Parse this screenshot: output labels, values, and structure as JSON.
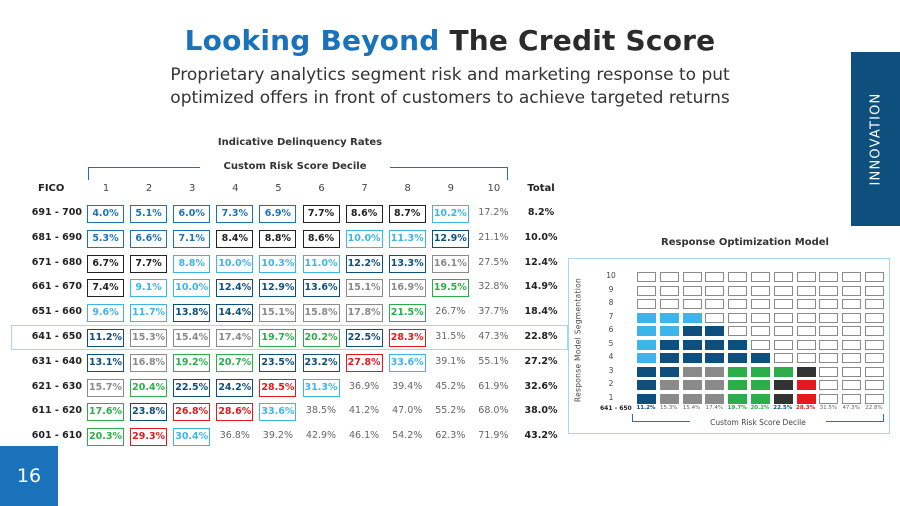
{
  "title": {
    "part1": "Looking Beyond",
    "part2": "The Credit Score"
  },
  "subtitle": {
    "line1": "Proprietary analytics segment risk and marketing response to put",
    "line2": "optimized offers in front of customers to achieve targeted returns"
  },
  "side_tab": "INNOVATION",
  "page_number": "16",
  "colors": {
    "blue": "#1A73BA",
    "dark_navy": "#0E4F7E",
    "black": "#222222",
    "light_blue": "#3DB5EA",
    "gray": "#8A8A8A",
    "green": "#2BAE49",
    "red": "#E3191D",
    "dark_gray": "#333333"
  },
  "table": {
    "title": "Indicative Delinquency Rates",
    "subtitle": "Custom Risk Score Decile",
    "fico_header": "FICO",
    "deciles": [
      "1",
      "2",
      "3",
      "4",
      "5",
      "6",
      "7",
      "8",
      "9",
      "10"
    ],
    "total_header": "Total",
    "rows": [
      {
        "label": "691 - 700",
        "total": "8.2%",
        "cells": [
          [
            "4.0%",
            "blue"
          ],
          [
            "5.1%",
            "blue"
          ],
          [
            "6.0%",
            "blue"
          ],
          [
            "7.3%",
            "blue"
          ],
          [
            "6.9%",
            "blue"
          ],
          [
            "7.7%",
            "black"
          ],
          [
            "8.6%",
            "black"
          ],
          [
            "8.7%",
            "black"
          ],
          [
            "10.2%",
            "lightblue"
          ],
          [
            "17.2%",
            "plain"
          ]
        ]
      },
      {
        "label": "681 - 690",
        "total": "10.0%",
        "cells": [
          [
            "5.3%",
            "blue"
          ],
          [
            "6.6%",
            "blue"
          ],
          [
            "7.1%",
            "blue"
          ],
          [
            "8.4%",
            "black"
          ],
          [
            "8.8%",
            "black"
          ],
          [
            "8.6%",
            "black"
          ],
          [
            "10.0%",
            "lightblue"
          ],
          [
            "11.3%",
            "lightblue"
          ],
          [
            "12.9%",
            "navy"
          ],
          [
            "21.1%",
            "plain"
          ]
        ]
      },
      {
        "label": "671 - 680",
        "total": "12.4%",
        "cells": [
          [
            "6.7%",
            "black"
          ],
          [
            "7.7%",
            "black"
          ],
          [
            "8.8%",
            "lightblue"
          ],
          [
            "10.0%",
            "lightblue"
          ],
          [
            "10.3%",
            "lightblue"
          ],
          [
            "11.0%",
            "lightblue"
          ],
          [
            "12.2%",
            "navy"
          ],
          [
            "13.3%",
            "navy"
          ],
          [
            "16.1%",
            "gray"
          ],
          [
            "27.5%",
            "plain"
          ]
        ]
      },
      {
        "label": "661 - 670",
        "total": "14.9%",
        "cells": [
          [
            "7.4%",
            "black"
          ],
          [
            "9.1%",
            "lightblue"
          ],
          [
            "10.0%",
            "lightblue"
          ],
          [
            "12.4%",
            "navy"
          ],
          [
            "12.9%",
            "navy"
          ],
          [
            "13.6%",
            "navy"
          ],
          [
            "15.1%",
            "gray"
          ],
          [
            "16.9%",
            "gray"
          ],
          [
            "19.5%",
            "green"
          ],
          [
            "32.8%",
            "plain"
          ]
        ]
      },
      {
        "label": "651 - 660",
        "total": "18.4%",
        "cells": [
          [
            "9.6%",
            "lightblue"
          ],
          [
            "11.7%",
            "lightblue"
          ],
          [
            "13.8%",
            "navy"
          ],
          [
            "14.4%",
            "navy"
          ],
          [
            "15.1%",
            "gray"
          ],
          [
            "15.8%",
            "gray"
          ],
          [
            "17.8%",
            "gray"
          ],
          [
            "21.5%",
            "green"
          ],
          [
            "26.7%",
            "plain"
          ],
          [
            "37.7%",
            "plain"
          ]
        ]
      },
      {
        "label": "641 - 650",
        "total": "22.8%",
        "cells": [
          [
            "11.2%",
            "navy"
          ],
          [
            "15.3%",
            "gray"
          ],
          [
            "15.4%",
            "gray"
          ],
          [
            "17.4%",
            "gray"
          ],
          [
            "19.7%",
            "green"
          ],
          [
            "20.2%",
            "green"
          ],
          [
            "22.5%",
            "navy"
          ],
          [
            "28.3%",
            "red"
          ],
          [
            "31.5%",
            "plain"
          ],
          [
            "47.3%",
            "plain"
          ]
        ]
      },
      {
        "label": "631 - 640",
        "total": "27.2%",
        "cells": [
          [
            "13.1%",
            "navy"
          ],
          [
            "16.8%",
            "gray"
          ],
          [
            "19.2%",
            "green"
          ],
          [
            "20.7%",
            "green"
          ],
          [
            "23.5%",
            "navy"
          ],
          [
            "23.2%",
            "navy"
          ],
          [
            "27.8%",
            "red"
          ],
          [
            "33.6%",
            "lightblue"
          ],
          [
            "39.1%",
            "plain"
          ],
          [
            "55.1%",
            "plain"
          ]
        ]
      },
      {
        "label": "621 - 630",
        "total": "32.6%",
        "cells": [
          [
            "15.7%",
            "gray"
          ],
          [
            "20.4%",
            "green"
          ],
          [
            "22.5%",
            "navy"
          ],
          [
            "24.2%",
            "navy"
          ],
          [
            "28.5%",
            "red"
          ],
          [
            "31.3%",
            "lightblue"
          ],
          [
            "36.9%",
            "plain"
          ],
          [
            "39.4%",
            "plain"
          ],
          [
            "45.2%",
            "plain"
          ],
          [
            "61.9%",
            "plain"
          ]
        ]
      },
      {
        "label": "611 - 620",
        "total": "38.0%",
        "cells": [
          [
            "17.6%",
            "green"
          ],
          [
            "23.8%",
            "navy"
          ],
          [
            "26.8%",
            "red"
          ],
          [
            "28.6%",
            "red"
          ],
          [
            "33.6%",
            "lightblue"
          ],
          [
            "38.5%",
            "plain"
          ],
          [
            "41.2%",
            "plain"
          ],
          [
            "47.0%",
            "plain"
          ],
          [
            "55.2%",
            "plain"
          ],
          [
            "68.0%",
            "plain"
          ]
        ]
      },
      {
        "label": "601 - 610",
        "total": "43.2%",
        "cells": [
          [
            "20.3%",
            "green"
          ],
          [
            "29.3%",
            "red"
          ],
          [
            "30.4%",
            "lightblue"
          ],
          [
            "36.8%",
            "plain"
          ],
          [
            "39.2%",
            "plain"
          ],
          [
            "42.9%",
            "plain"
          ],
          [
            "46.1%",
            "plain"
          ],
          [
            "54.2%",
            "plain"
          ],
          [
            "62.3%",
            "plain"
          ],
          [
            "71.9%",
            "plain"
          ]
        ]
      }
    ]
  },
  "response_model": {
    "title": "Response Optimization Model",
    "y_axis_label": "Response Model Segmentation",
    "y_ticks": [
      "10",
      "9",
      "8",
      "7",
      "6",
      "5",
      "4",
      "3",
      "2",
      "1"
    ],
    "x_axis_label": "Custom Risk Score Decile",
    "row_label": "641 - 650",
    "row_values": [
      [
        "11.2%",
        "navy"
      ],
      [
        "15.3%",
        "plain"
      ],
      [
        "15.4%",
        "plain"
      ],
      [
        "17.4%",
        "plain"
      ],
      [
        "19.7%",
        "green"
      ],
      [
        "20.2%",
        "green"
      ],
      [
        "22.5%",
        "navy"
      ],
      [
        "28.3%",
        "red"
      ],
      [
        "31.5%",
        "plain"
      ],
      [
        "47.3%",
        "plain"
      ],
      [
        "22.8%",
        "plain"
      ]
    ],
    "grid_fills": [
      [
        "empty",
        "empty",
        "empty",
        "empty",
        "empty",
        "empty",
        "empty",
        "empty",
        "empty",
        "empty",
        "empty"
      ],
      [
        "empty",
        "empty",
        "empty",
        "empty",
        "empty",
        "empty",
        "empty",
        "empty",
        "empty",
        "empty",
        "empty"
      ],
      [
        "empty",
        "empty",
        "empty",
        "empty",
        "empty",
        "empty",
        "empty",
        "empty",
        "empty",
        "empty",
        "empty"
      ],
      [
        "lightblue",
        "lightblue",
        "lightblue",
        "empty",
        "empty",
        "empty",
        "empty",
        "empty",
        "empty",
        "empty",
        "empty"
      ],
      [
        "lightblue",
        "lightblue",
        "navy",
        "navy",
        "empty",
        "empty",
        "empty",
        "empty",
        "empty",
        "empty",
        "empty"
      ],
      [
        "lightblue",
        "navy",
        "navy",
        "navy",
        "navy",
        "empty",
        "empty",
        "empty",
        "empty",
        "empty",
        "empty"
      ],
      [
        "lightblue",
        "navy",
        "navy",
        "navy",
        "navy",
        "navy",
        "empty",
        "empty",
        "empty",
        "empty",
        "empty"
      ],
      [
        "navy",
        "navy",
        "gray",
        "gray",
        "green",
        "green",
        "green",
        "darkgray",
        "empty",
        "empty",
        "empty"
      ],
      [
        "navy",
        "gray",
        "gray",
        "gray",
        "green",
        "green",
        "darkgray",
        "red",
        "empty",
        "empty",
        "empty"
      ],
      [
        "navy",
        "gray",
        "gray",
        "gray",
        "green",
        "green",
        "darkgray",
        "red",
        "empty",
        "empty",
        "empty"
      ]
    ]
  }
}
